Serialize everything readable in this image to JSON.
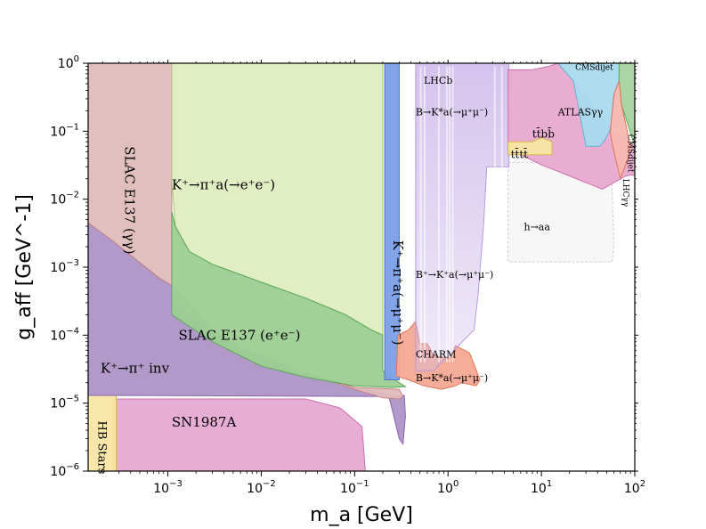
{
  "chart_data": {
    "type": "area",
    "title": "",
    "xlabel": "m_a [GeV]",
    "ylabel": "g_aff [GeV^-1]",
    "xscale": "log",
    "yscale": "log",
    "xlim": [
      0.00014,
      100
    ],
    "ylim": [
      1e-06,
      1
    ],
    "x_ticks": [
      {
        "value": 0.001,
        "base": "10",
        "exp": "−3"
      },
      {
        "value": 0.01,
        "base": "10",
        "exp": "−2"
      },
      {
        "value": 0.1,
        "base": "10",
        "exp": "−1"
      },
      {
        "value": 1,
        "base": "10",
        "exp": "0"
      },
      {
        "value": 10,
        "base": "10",
        "exp": "1"
      },
      {
        "value": 100,
        "base": "10",
        "exp": "2"
      }
    ],
    "y_ticks": [
      {
        "value": 1e-06,
        "base": "10",
        "exp": "−6"
      },
      {
        "value": 1e-05,
        "base": "10",
        "exp": "−5"
      },
      {
        "value": 0.0001,
        "base": "10",
        "exp": "−4"
      },
      {
        "value": 0.001,
        "base": "10",
        "exp": "−3"
      },
      {
        "value": 0.01,
        "base": "10",
        "exp": "−2"
      },
      {
        "value": 0.1,
        "base": "10",
        "exp": "−1"
      },
      {
        "value": 1,
        "base": "10",
        "exp": "0"
      }
    ],
    "regions": [
      {
        "name": "sn1987a",
        "label": "SN1987A",
        "fill": "#e7a9d3",
        "edge": "#cc6fb0",
        "points": [
          [
            0.00026,
            1.15e-05
          ],
          [
            0.03,
            1.15e-05
          ],
          [
            0.07,
            8.5e-06
          ],
          [
            0.12,
            4.5e-06
          ],
          [
            0.13,
            1e-06
          ],
          [
            0.00026,
            1e-06
          ]
        ]
      },
      {
        "name": "hb-stars",
        "label": "HB Stars",
        "fill": "#f9e6a4",
        "edge": "#d9b94b",
        "points": [
          [
            0.00014,
            1e-06
          ],
          [
            0.00028,
            1e-06
          ],
          [
            0.00028,
            1.3e-05
          ],
          [
            0.00014,
            1.3e-05
          ]
        ]
      },
      {
        "name": "k-pi-inv",
        "label": "K⁺→π⁺ inv",
        "fill": "#ad93c6",
        "edge": "#8a63ad",
        "points": [
          [
            0.00014,
            0.0045
          ],
          [
            0.00025,
            0.0025
          ],
          [
            0.0008,
            0.0007
          ],
          [
            0.0012,
            0.0005
          ],
          [
            0.003,
            0.00012
          ],
          [
            0.01,
            4.5e-05
          ],
          [
            0.03,
            2.5e-05
          ],
          [
            0.06,
            2.1e-05
          ],
          [
            0.1,
            1.7e-05
          ],
          [
            0.2,
            1.4e-05
          ],
          [
            0.23,
            1.3e-05
          ],
          [
            0.25,
            8.5e-06
          ],
          [
            0.3,
            3e-06
          ],
          [
            0.33,
            2.5e-06
          ],
          [
            0.35,
            6.5e-06
          ],
          [
            0.34,
            1.3e-05
          ],
          [
            0.28,
            1.25e-05
          ],
          [
            0.0002,
            1.3e-05
          ],
          [
            0.00014,
            1.3e-05
          ]
        ]
      },
      {
        "name": "slac-e137-gamma",
        "label": "SLAC E137 (γγ)",
        "fill": "#dfbcbc",
        "edge": "#c78484",
        "points": [
          [
            0.00014,
            1
          ],
          [
            0.0011,
            1
          ],
          [
            0.0011,
            0.0003
          ],
          [
            0.005,
            7e-05
          ],
          [
            0.03,
            2.8e-05
          ],
          [
            0.1,
            1.6e-05
          ],
          [
            0.2,
            1.2e-05
          ],
          [
            0.3,
            1.15e-05
          ],
          [
            0.33,
            1.25e-05
          ],
          [
            0.3,
            1.6e-05
          ],
          [
            0.1,
            1.7e-05
          ],
          [
            0.06,
            2.1e-05
          ],
          [
            0.03,
            2.5e-05
          ],
          [
            0.01,
            4.5e-05
          ],
          [
            0.003,
            0.00012
          ],
          [
            0.0012,
            0.0005
          ],
          [
            0.0008,
            0.0007
          ],
          [
            0.00025,
            0.0025
          ],
          [
            0.00014,
            0.0045
          ]
        ]
      },
      {
        "name": "k-pi-a-ee",
        "label": "K⁺→π⁺a(→e⁺e⁻)",
        "fill": "#dfedc0",
        "edge": "#a7cc70",
        "points": [
          [
            0.0011,
            1
          ],
          [
            0.2,
            1
          ],
          [
            0.2,
            0.0001
          ],
          [
            0.15,
            0.00012
          ],
          [
            0.08,
            0.0002
          ],
          [
            0.03,
            0.00035
          ],
          [
            0.01,
            0.0006
          ],
          [
            0.003,
            0.0011
          ],
          [
            0.0017,
            0.0017
          ],
          [
            0.0012,
            0.004
          ],
          [
            0.0011,
            0.02
          ]
        ]
      },
      {
        "name": "slac-e137-ee",
        "label": "SLAC E137 (e⁺e⁻)",
        "fill": "#9ccd94",
        "edge": "#5aa857",
        "points": [
          [
            0.0011,
            0.0065
          ],
          [
            0.0012,
            0.004
          ],
          [
            0.0017,
            0.0017
          ],
          [
            0.003,
            0.0011
          ],
          [
            0.01,
            0.0006
          ],
          [
            0.03,
            0.00035
          ],
          [
            0.08,
            0.0002
          ],
          [
            0.15,
            0.00012
          ],
          [
            0.2,
            0.0001
          ],
          [
            0.2,
            3e-05
          ],
          [
            0.27,
            2.2e-05
          ],
          [
            0.35,
            1.75e-05
          ],
          [
            0.25,
            1.7e-05
          ],
          [
            0.1,
            1.8e-05
          ],
          [
            0.03,
            2.4e-05
          ],
          [
            0.01,
            3.5e-05
          ],
          [
            0.003,
            8e-05
          ],
          [
            0.0011,
            0.0002
          ]
        ]
      },
      {
        "name": "k-pi-a-mumu",
        "label": "K⁺→π⁺a(→μ⁺μ⁻)",
        "fill": "#7ba0e8",
        "edge": "#4a72d3",
        "points": [
          [
            0.21,
            1
          ],
          [
            0.3,
            1
          ],
          [
            0.3,
            2.2e-05
          ],
          [
            0.21,
            2.2e-05
          ]
        ]
      },
      {
        "name": "charm",
        "label": "CHARM",
        "fill": "#f4a892",
        "edge": "#e0755a",
        "points": [
          [
            0.29,
            0.0001
          ],
          [
            0.38,
            0.00012
          ],
          [
            0.45,
            0.00016
          ],
          [
            0.5,
            7.5e-05
          ],
          [
            0.6,
            7.5e-05
          ],
          [
            0.7,
            5e-05
          ],
          [
            1.05,
            4.5e-05
          ],
          [
            1.2,
            7e-05
          ],
          [
            1.7,
            5.5e-05
          ],
          [
            2.2,
            2.2e-05
          ],
          [
            2.0,
            1.8e-05
          ],
          [
            1.4,
            2e-05
          ],
          [
            1.2,
            1.8e-05
          ],
          [
            0.85,
            1.6e-05
          ],
          [
            0.55,
            1.8e-05
          ],
          [
            0.38,
            2.2e-05
          ],
          [
            0.28,
            2.5e-05
          ]
        ]
      },
      {
        "name": "h-aa",
        "label": "h→aa",
        "fill": "#f7f7f7",
        "edge": "#cccccc",
        "points": [
          [
            4.4,
            0.035
          ],
          [
            56,
            0.035
          ],
          [
            60,
            0.002
          ],
          [
            57,
            0.0012
          ],
          [
            4.4,
            0.0012
          ]
        ]
      },
      {
        "name": "lhcb",
        "label": "LHCb",
        "fill": "#d2c0ec",
        "edge": "#b79ae0",
        "points": [
          [
            0.45,
            1
          ],
          [
            4.5,
            1
          ],
          [
            4.5,
            0.03
          ],
          [
            2.6,
            0.03
          ],
          [
            2.4,
            0.004
          ],
          [
            2.1,
            0.0004
          ],
          [
            1.9,
            0.00012
          ],
          [
            0.7,
            3e-05
          ],
          [
            0.45,
            3e-05
          ]
        ]
      },
      {
        "name": "ttbb",
        "label": "t t̄ b b̄",
        "fill": "#e8a9cf",
        "edge": "#cc6fb0",
        "points": [
          [
            4.4,
            0.8
          ],
          [
            8,
            0.8
          ],
          [
            12,
            0.9
          ],
          [
            15,
            1
          ],
          [
            22,
            0.55
          ],
          [
            38,
            0.2
          ],
          [
            60,
            0.1
          ],
          [
            100,
            0.06
          ],
          [
            100,
            0.023
          ],
          [
            80,
            0.022
          ],
          [
            45,
            0.014
          ],
          [
            20,
            0.022
          ],
          [
            10,
            0.032
          ],
          [
            6,
            0.045
          ],
          [
            4.4,
            0.045
          ]
        ]
      },
      {
        "name": "tttt",
        "label": "t t̄ t t̄",
        "fill": "#f9e6a4",
        "edge": "#d9b94b",
        "points": [
          [
            4.4,
            0.07
          ],
          [
            8,
            0.07
          ],
          [
            10,
            0.08
          ],
          [
            13,
            0.07
          ],
          [
            13,
            0.045
          ],
          [
            4.4,
            0.045
          ]
        ]
      },
      {
        "name": "atlas-gg",
        "label": "ATLASγγ",
        "fill": "#a9daee",
        "edge": "#5fb4d8",
        "points": [
          [
            14,
            1
          ],
          [
            68,
            1
          ],
          [
            68,
            0.55
          ],
          [
            60,
            0.35
          ],
          [
            55,
            0.11
          ],
          [
            48,
            0.075
          ],
          [
            42,
            0.06
          ],
          [
            30,
            0.06
          ],
          [
            22,
            0.55
          ],
          [
            15,
            1
          ]
        ]
      },
      {
        "name": "cms-dijet",
        "label": "CMSdijet",
        "fill": "#a8d3a0",
        "edge": "#5aa857",
        "points": [
          [
            68,
            1
          ],
          [
            100,
            1
          ],
          [
            100,
            0.06
          ],
          [
            72,
            0.25
          ],
          [
            68,
            0.55
          ]
        ]
      },
      {
        "name": "lhc-gg",
        "label": "LHCγγ",
        "fill": "#f6b8b0",
        "edge": "#e0755a",
        "points": [
          [
            55,
            0.11
          ],
          [
            60,
            0.35
          ],
          [
            68,
            0.55
          ],
          [
            72,
            0.25
          ],
          [
            90,
            0.06
          ],
          [
            85,
            0.04
          ],
          [
            70,
            0.02
          ],
          [
            58,
            0.06
          ],
          [
            55,
            0.09
          ]
        ]
      }
    ],
    "annotations": [
      {
        "text": "SLAC E137 (γγ)",
        "x": 0.00035,
        "y": 0.06,
        "rotate": 90
      },
      {
        "text": "K⁺→π⁺a(→e⁺e⁻)",
        "x": 0.0011,
        "y": 0.014,
        "rotate": 0
      },
      {
        "text": "SLAC E137 (e⁺e⁻)",
        "x": 0.0013,
        "y": 8.5e-05,
        "rotate": 0
      },
      {
        "text": "K⁺→π⁺ inv",
        "x": 0.00019,
        "y": 2.8e-05,
        "rotate": 0
      },
      {
        "text": "SN1987A",
        "x": 0.0011,
        "y": 4.5e-06,
        "rotate": 0
      },
      {
        "text": "HB Stars",
        "x": 0.00018,
        "y": 5.5e-06,
        "rotate": 90
      },
      {
        "text": "K⁺→π⁺a(→μ⁺μ⁻)",
        "x": 0.26,
        "y": 0.0025,
        "rotate": 90
      },
      {
        "text": "LHCb",
        "x": 0.55,
        "y": 0.5,
        "rotate": 0
      },
      {
        "text": "B→K*a(→μ⁺μ⁻)",
        "x": 0.45,
        "y": 0.17,
        "rotate": 0
      },
      {
        "text": "B⁺→K⁺a(→μ⁺μ⁻)",
        "x": 0.45,
        "y": 0.0007,
        "rotate": 0
      },
      {
        "text": "CHARM",
        "x": 0.45,
        "y": 4.7e-05,
        "rotate": 0
      },
      {
        "text": "B→K*a(→μ⁺μ⁻)",
        "x": 0.45,
        "y": 2.1e-05,
        "rotate": 0
      },
      {
        "text": "h→aa",
        "x": 6.5,
        "y": 0.0035,
        "rotate": 0
      },
      {
        "text": "ATLASγγ",
        "x": 15,
        "y": 0.17,
        "rotate": 0
      },
      {
        "text": "CMSdijet",
        "x": 23,
        "y": 0.8,
        "rotate": 0
      },
      {
        "text": "CMSdijet",
        "x": 85,
        "y": 0.09,
        "rotate": 90
      },
      {
        "text": "LHCγγ",
        "x": 75,
        "y": 0.02,
        "rotate": 90
      },
      {
        "text": "tt̄bb̄",
        "x": 8,
        "y": 0.08,
        "rotate": 0
      },
      {
        "text": "tt̄tt̄",
        "x": 4.7,
        "y": 0.04,
        "rotate": 0
      }
    ]
  }
}
